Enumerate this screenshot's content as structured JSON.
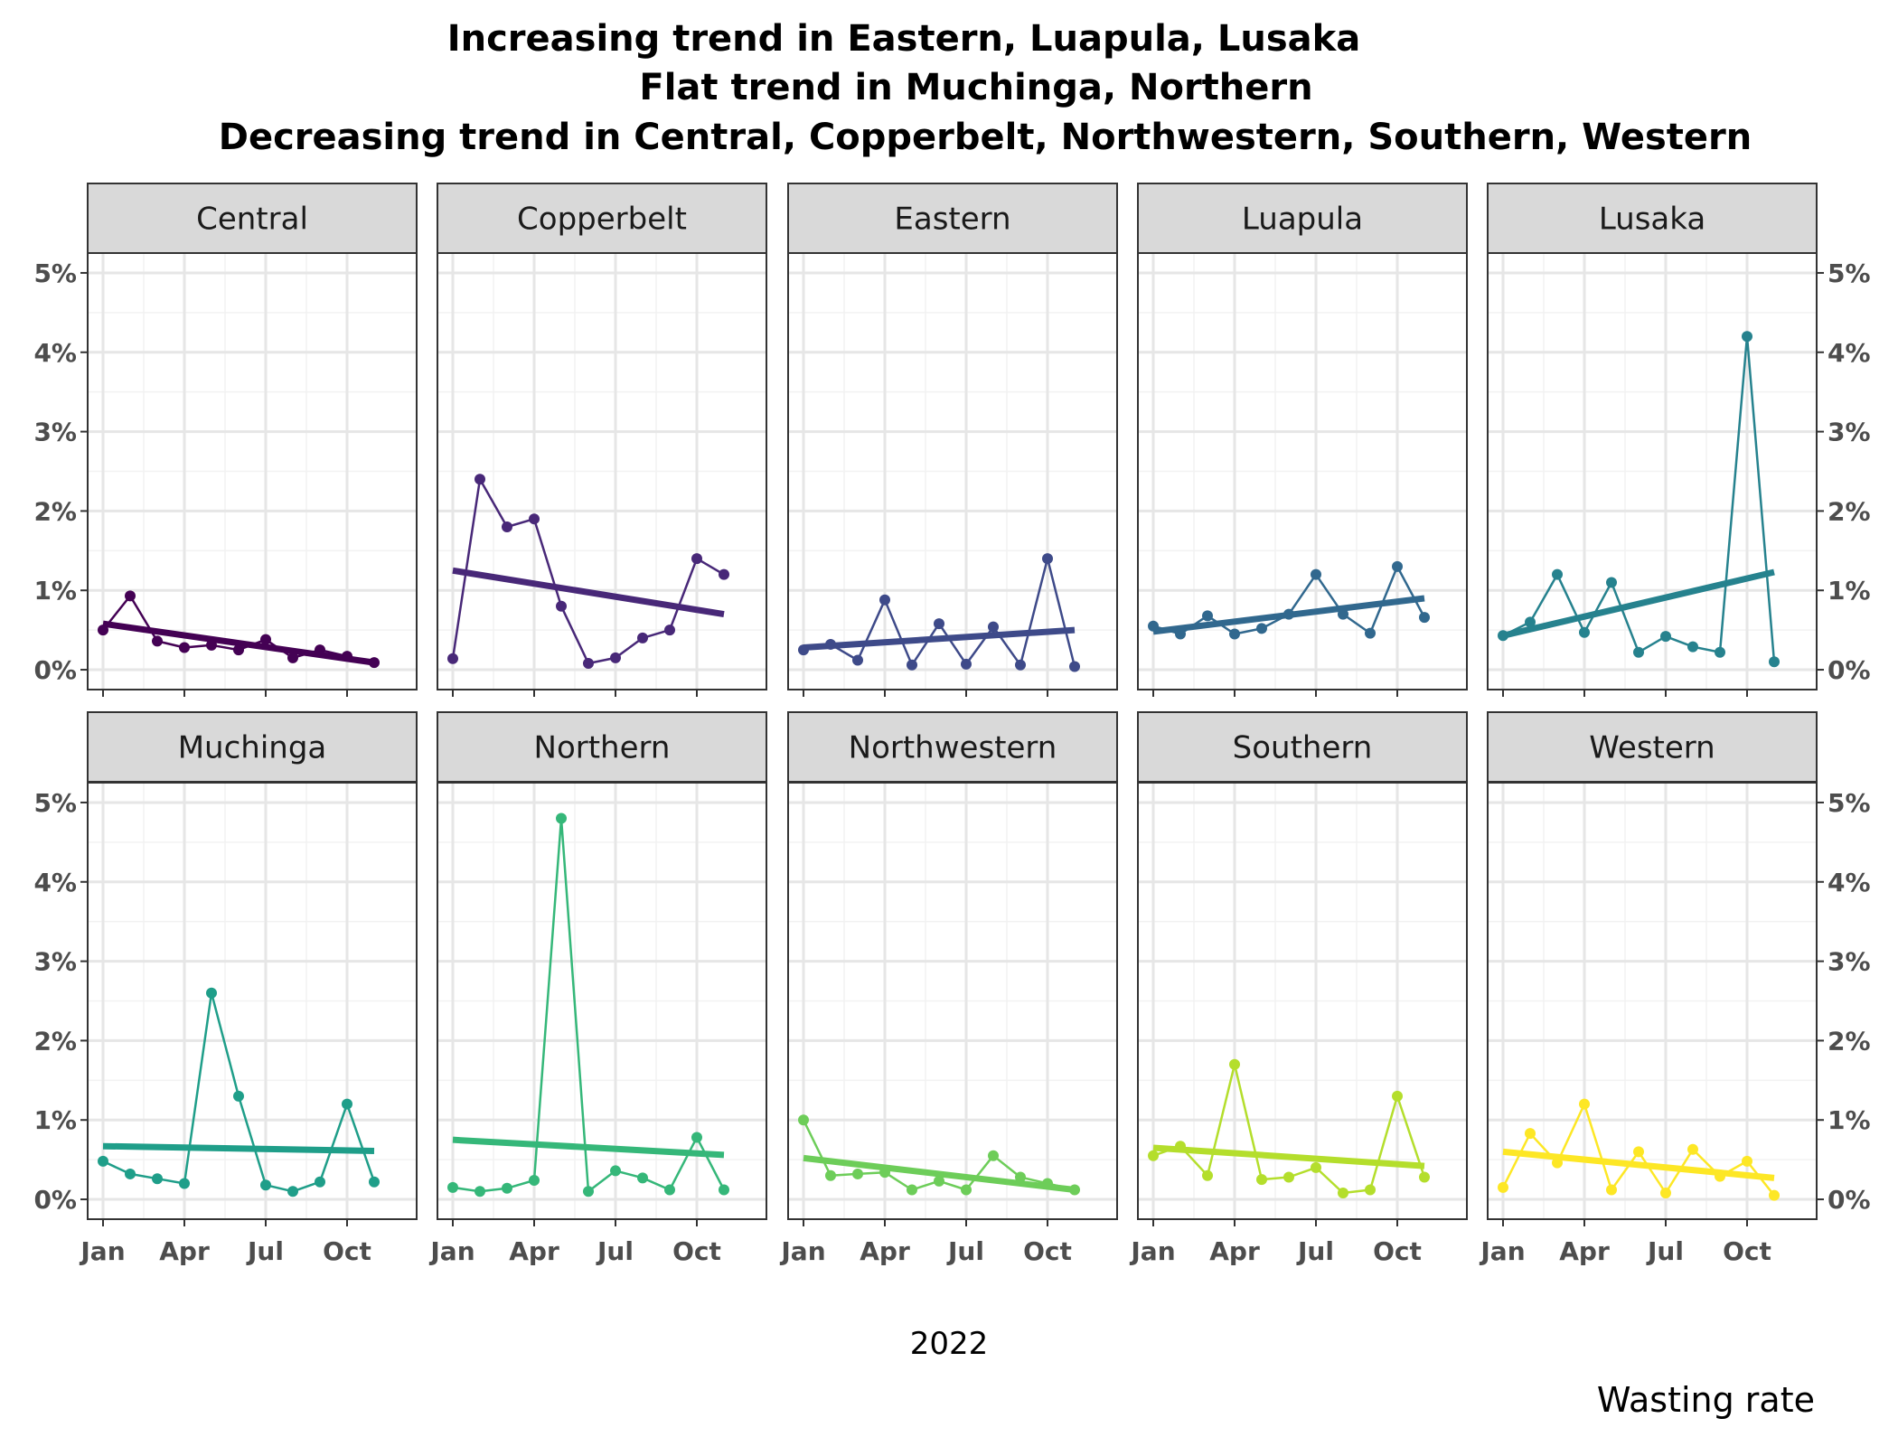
{
  "chart_data": {
    "type": "line",
    "title_lines": [
      "Increasing trend in Eastern, Luapula, Lusaka",
      "Flat trend in Muchinga, Northern",
      "Decreasing trend in Central, Copperbelt, Northwestern, Southern, Western"
    ],
    "xlabel": "2022",
    "ylabel": "",
    "caption": "Wasting rate",
    "x_tick_labels": [
      "Jan",
      "Apr",
      "Jul",
      "Oct"
    ],
    "x_tick_months": [
      1,
      4,
      7,
      10
    ],
    "x_range_months": [
      1,
      12
    ],
    "ylim": [
      0,
      5
    ],
    "y_ticks": [
      0,
      1,
      2,
      3,
      4,
      5
    ],
    "y_tick_labels": [
      "0%",
      "1%",
      "2%",
      "3%",
      "4%",
      "5%"
    ],
    "grid": true,
    "facets": [
      {
        "name": "Central",
        "color": "#440154",
        "months": [
          1,
          2,
          3,
          4,
          5,
          6,
          7,
          8,
          9,
          10,
          11
        ],
        "values": [
          0.5,
          0.93,
          0.36,
          0.28,
          0.31,
          0.25,
          0.38,
          0.15,
          0.25,
          0.17,
          0.09
        ],
        "trend": [
          0.58,
          0.09
        ]
      },
      {
        "name": "Copperbelt",
        "color": "#482878",
        "months": [
          1,
          2,
          3,
          4,
          5,
          6,
          7,
          8,
          9,
          10,
          11
        ],
        "values": [
          0.14,
          2.4,
          1.8,
          1.9,
          0.8,
          0.08,
          0.15,
          0.4,
          0.5,
          1.4,
          1.2
        ],
        "trend": [
          1.25,
          0.7
        ]
      },
      {
        "name": "Eastern",
        "color": "#3E4A89",
        "months": [
          1,
          2,
          3,
          4,
          5,
          6,
          7,
          8,
          9,
          10,
          11
        ],
        "values": [
          0.25,
          0.32,
          0.12,
          0.88,
          0.06,
          0.58,
          0.07,
          0.54,
          0.06,
          1.4,
          0.04
        ],
        "trend": [
          0.28,
          0.5
        ]
      },
      {
        "name": "Luapula",
        "color": "#31688E",
        "months": [
          1,
          2,
          3,
          4,
          5,
          6,
          7,
          8,
          9,
          10,
          11
        ],
        "values": [
          0.55,
          0.45,
          0.68,
          0.45,
          0.52,
          0.7,
          1.2,
          0.7,
          0.46,
          1.3,
          0.66
        ],
        "trend": [
          0.48,
          0.9
        ]
      },
      {
        "name": "Lusaka",
        "color": "#26828E",
        "months": [
          1,
          2,
          3,
          4,
          5,
          6,
          7,
          8,
          9,
          10,
          11
        ],
        "values": [
          0.43,
          0.6,
          1.2,
          0.47,
          1.1,
          0.22,
          0.42,
          0.29,
          0.22,
          4.2,
          0.1
        ],
        "trend": [
          0.43,
          1.23
        ]
      },
      {
        "name": "Muchinga",
        "color": "#1F9E89",
        "months": [
          1,
          2,
          3,
          4,
          5,
          6,
          7,
          8,
          9,
          10,
          11
        ],
        "values": [
          0.48,
          0.32,
          0.26,
          0.2,
          2.6,
          1.3,
          0.18,
          0.1,
          0.22,
          1.2,
          0.22
        ],
        "trend": [
          0.67,
          0.61
        ]
      },
      {
        "name": "Northern",
        "color": "#35B779",
        "months": [
          1,
          2,
          3,
          4,
          5,
          6,
          7,
          8,
          9,
          10,
          11
        ],
        "values": [
          0.15,
          0.1,
          0.14,
          0.24,
          4.8,
          0.1,
          0.36,
          0.27,
          0.12,
          0.78,
          0.12
        ],
        "trend": [
          0.75,
          0.56
        ]
      },
      {
        "name": "Northwestern",
        "color": "#6DCD59",
        "months": [
          1,
          2,
          3,
          4,
          5,
          6,
          7,
          8,
          9,
          10,
          11
        ],
        "values": [
          1.0,
          0.3,
          0.32,
          0.34,
          0.12,
          0.23,
          0.12,
          0.55,
          0.28,
          0.2,
          0.12
        ],
        "trend": [
          0.52,
          0.12
        ]
      },
      {
        "name": "Southern",
        "color": "#B4DE2C",
        "months": [
          1,
          2,
          3,
          4,
          5,
          6,
          7,
          8,
          9,
          10,
          11
        ],
        "values": [
          0.55,
          0.67,
          0.3,
          1.7,
          0.25,
          0.28,
          0.4,
          0.08,
          0.12,
          1.3,
          0.28
        ],
        "trend": [
          0.65,
          0.42
        ]
      },
      {
        "name": "Western",
        "color": "#FDE725",
        "months": [
          1,
          2,
          3,
          4,
          5,
          6,
          7,
          8,
          9,
          10,
          11
        ],
        "values": [
          0.15,
          0.83,
          0.46,
          1.2,
          0.12,
          0.6,
          0.08,
          0.63,
          0.29,
          0.48,
          0.05
        ],
        "trend": [
          0.6,
          0.27
        ]
      }
    ]
  }
}
